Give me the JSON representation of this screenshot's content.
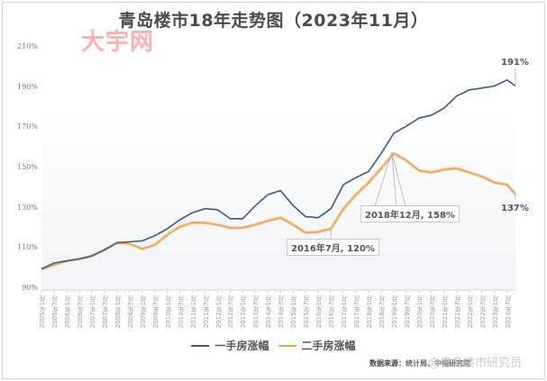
{
  "title": "青岛楼市18年走势图（2023年11月）",
  "watermark_top": "大宇网",
  "watermark_bottom": "@青岛楼市研究员",
  "source": {
    "label": "数据来源：",
    "detail": "统计局、中指研究院"
  },
  "legend": [
    {
      "name": "一手房涨幅",
      "color": "#3f5a80"
    },
    {
      "name": "二手房涨幅",
      "color": "#e8a055"
    }
  ],
  "annotations": [
    {
      "text": "2016年7月, 120%",
      "series": "二手房涨幅",
      "x": "2016年7月",
      "y": 120
    },
    {
      "text": "2018年12月, 158%",
      "series": "二手房涨幅",
      "x": "2018年12月",
      "y": 158
    },
    {
      "text": "191%",
      "series": "一手房涨幅",
      "x": "2023年11月",
      "y": 191
    },
    {
      "text": "137%",
      "series": "二手房涨幅",
      "x": "2023年11月",
      "y": 137
    }
  ],
  "chart_data": {
    "type": "line",
    "title": "青岛楼市18年走势图（2023年11月）",
    "xlabel": "",
    "ylabel": "",
    "ylim": [
      90,
      210
    ],
    "yticks": [
      "90%",
      "110%",
      "130%",
      "150%",
      "170%",
      "190%",
      "210%"
    ],
    "grid": false,
    "legend_position": "bottom",
    "categories": [
      "2005年1月",
      "2005年7月",
      "2006年1月",
      "2006年7月",
      "2007年1月",
      "2007年7月",
      "2008年1月",
      "2008年7月",
      "2009年1月",
      "2009年7月",
      "2010年1月",
      "2010年7月",
      "2011年1月",
      "2011年7月",
      "2012年1月",
      "2012年7月",
      "2013年1月",
      "2013年7月",
      "2014年1月",
      "2014年7月",
      "2015年1月",
      "2015年7月",
      "2016年1月",
      "2016年7月",
      "2017年1月",
      "2017年7月",
      "2018年1月",
      "2018年7月",
      "2019年1月",
      "2019年7月",
      "2020年1月",
      "2020年7月",
      "2021年1月",
      "2021年7月",
      "2022年1月",
      "2022年7月",
      "2023年1月",
      "2023年7月",
      "2023年11月"
    ],
    "series": [
      {
        "name": "一手房涨幅",
        "color": "#3f5a80",
        "values": [
          100,
          103,
          104,
          105,
          106.5,
          109.5,
          113,
          113.5,
          114,
          116.5,
          120,
          124.5,
          128,
          130,
          129.5,
          125,
          125,
          131.5,
          137,
          139,
          131.5,
          126,
          125.5,
          130,
          142,
          145.5,
          148.5,
          157.5,
          167.5,
          171,
          175,
          176.5,
          180,
          186,
          189,
          190,
          191,
          194,
          191
        ]
      },
      {
        "name": "二手房涨幅",
        "color": "#e8a055",
        "values": [
          100,
          102,
          104,
          105,
          106.5,
          109.5,
          113,
          112.5,
          110,
          112,
          117,
          121,
          123,
          123,
          122,
          120.5,
          120.5,
          122,
          124,
          125.5,
          122,
          118,
          118.5,
          120,
          130,
          137,
          143,
          150,
          157.5,
          154,
          149,
          148,
          149.5,
          150,
          148,
          146,
          143,
          142,
          137
        ]
      }
    ]
  }
}
